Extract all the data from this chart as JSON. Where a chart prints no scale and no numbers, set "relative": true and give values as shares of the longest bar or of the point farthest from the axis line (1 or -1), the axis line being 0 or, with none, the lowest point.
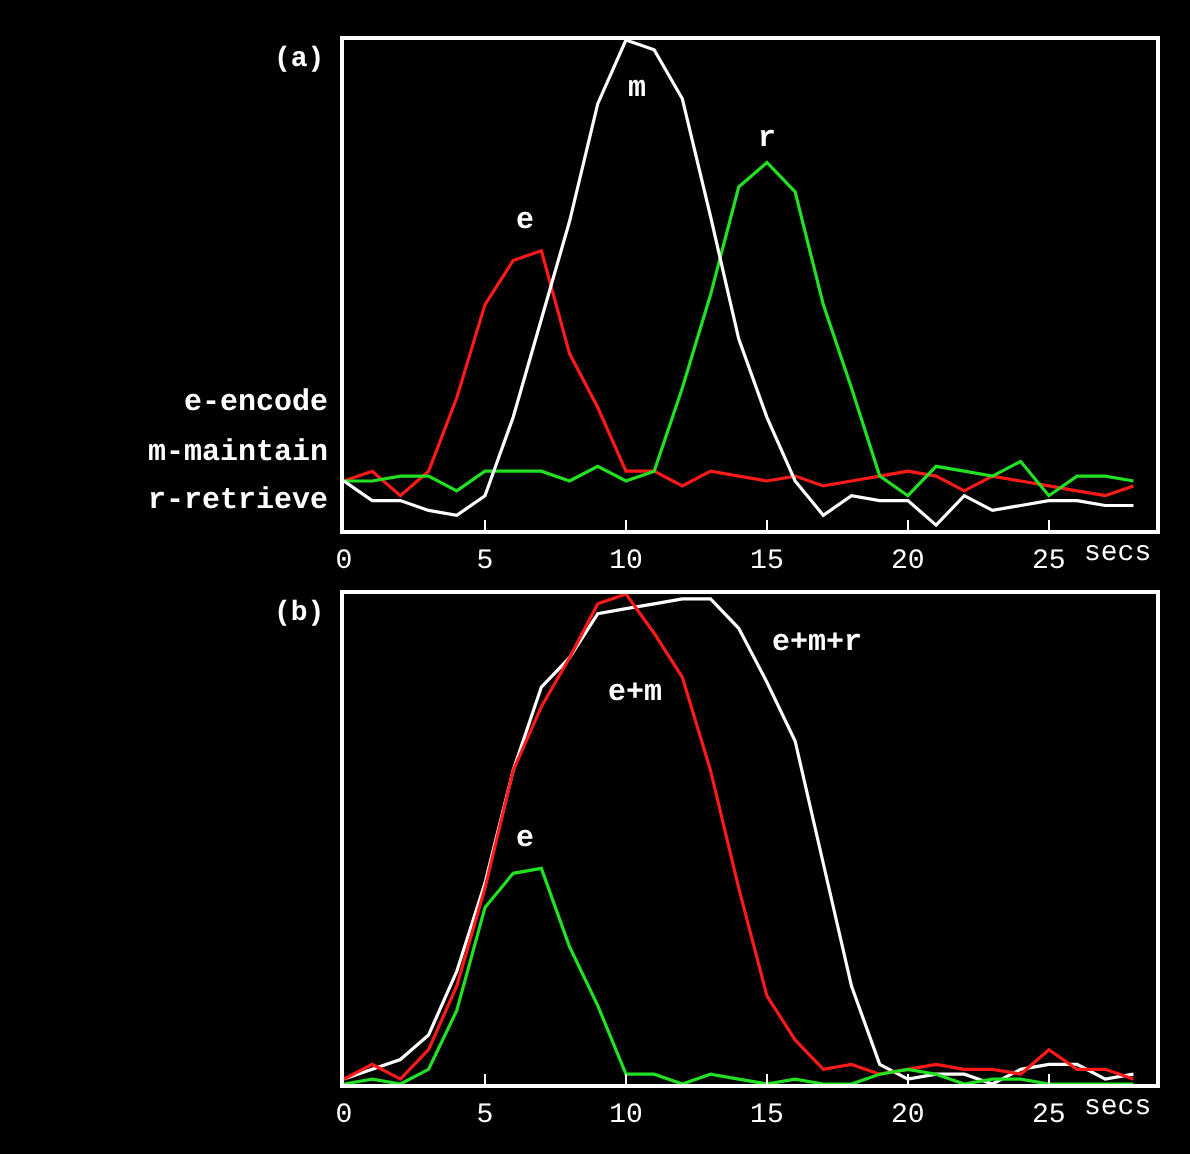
{
  "chart_data": [
    {
      "type": "line",
      "title": "(a)",
      "relative": true,
      "xlabel": "secs",
      "xlim": [
        0,
        28.8
      ],
      "xticks": [
        0,
        5,
        10,
        15,
        20,
        25
      ],
      "tick_labels": "x",
      "x": [
        0,
        1,
        2,
        3,
        4,
        5,
        6,
        7,
        8,
        9,
        10,
        11,
        12,
        13,
        14,
        15,
        16,
        17,
        18,
        19,
        20,
        21,
        22,
        23,
        24,
        25,
        26,
        27,
        28
      ],
      "series": [
        {
          "color": "#ff1a1a",
          "values": [
            0.1,
            0.12,
            0.07,
            0.12,
            0.27,
            0.46,
            0.55,
            0.57,
            0.36,
            0.25,
            0.12,
            0.12,
            0.09,
            0.12,
            0.11,
            0.1,
            0.11,
            0.09,
            0.1,
            0.11,
            0.12,
            0.11,
            0.08,
            0.11,
            0.1,
            0.09,
            0.08,
            0.07,
            0.09
          ]
        },
        {
          "color": "#22e022",
          "values": [
            0.1,
            0.1,
            0.11,
            0.11,
            0.08,
            0.12,
            0.12,
            0.12,
            0.1,
            0.13,
            0.1,
            0.12,
            0.29,
            0.48,
            0.7,
            0.75,
            0.69,
            0.46,
            0.29,
            0.11,
            0.07,
            0.13,
            0.12,
            0.11,
            0.14,
            0.07,
            0.11,
            0.11,
            0.1
          ]
        },
        {
          "color": "#ffffff",
          "values": [
            0.1,
            0.06,
            0.06,
            0.04,
            0.03,
            0.07,
            0.23,
            0.43,
            0.63,
            0.87,
            1.0,
            0.98,
            0.88,
            0.64,
            0.39,
            0.23,
            0.1,
            0.03,
            0.07,
            0.06,
            0.06,
            0.01,
            0.07,
            0.04,
            0.05,
            0.06,
            0.06,
            0.05,
            0.05
          ]
        }
      ],
      "annotations": [
        "e",
        "m",
        "r",
        "e-encode",
        "m-maintain",
        "r-retrieve"
      ]
    },
    {
      "type": "line",
      "title": "(b)",
      "relative": true,
      "xlabel": "secs",
      "xlim": [
        0,
        28.8
      ],
      "xticks": [
        0,
        5,
        10,
        15,
        20,
        25
      ],
      "tick_labels": "x",
      "x": [
        0,
        1,
        2,
        3,
        4,
        5,
        6,
        7,
        8,
        9,
        10,
        11,
        12,
        13,
        14,
        15,
        16,
        17,
        18,
        19,
        20,
        21,
        22,
        23,
        24,
        25,
        26,
        27,
        28
      ],
      "series": [
        {
          "color": "#ffffff",
          "values": [
            0.01,
            0.03,
            0.05,
            0.1,
            0.23,
            0.41,
            0.64,
            0.81,
            0.87,
            0.96,
            0.97,
            0.98,
            0.99,
            0.99,
            0.93,
            0.82,
            0.7,
            0.45,
            0.2,
            0.04,
            0.01,
            0.02,
            0.02,
            0.0,
            0.03,
            0.04,
            0.04,
            0.01,
            0.02
          ]
        },
        {
          "color": "#ff1a1a",
          "values": [
            0.01,
            0.04,
            0.01,
            0.07,
            0.2,
            0.4,
            0.64,
            0.77,
            0.87,
            0.98,
            1.0,
            0.92,
            0.83,
            0.64,
            0.4,
            0.18,
            0.09,
            0.03,
            0.04,
            0.02,
            0.03,
            0.04,
            0.03,
            0.03,
            0.02,
            0.07,
            0.03,
            0.03,
            0.01
          ]
        },
        {
          "color": "#22e022",
          "values": [
            0.0,
            0.01,
            0.0,
            0.03,
            0.15,
            0.36,
            0.43,
            0.44,
            0.28,
            0.16,
            0.02,
            0.02,
            0.0,
            0.02,
            0.01,
            0.0,
            0.01,
            0.0,
            0.0,
            0.02,
            0.03,
            0.02,
            0.0,
            0.01,
            0.01,
            0.0,
            0.0,
            0.0,
            0.0
          ]
        }
      ],
      "annotations": [
        "e",
        "e+m",
        "e+m+r"
      ]
    }
  ]
}
